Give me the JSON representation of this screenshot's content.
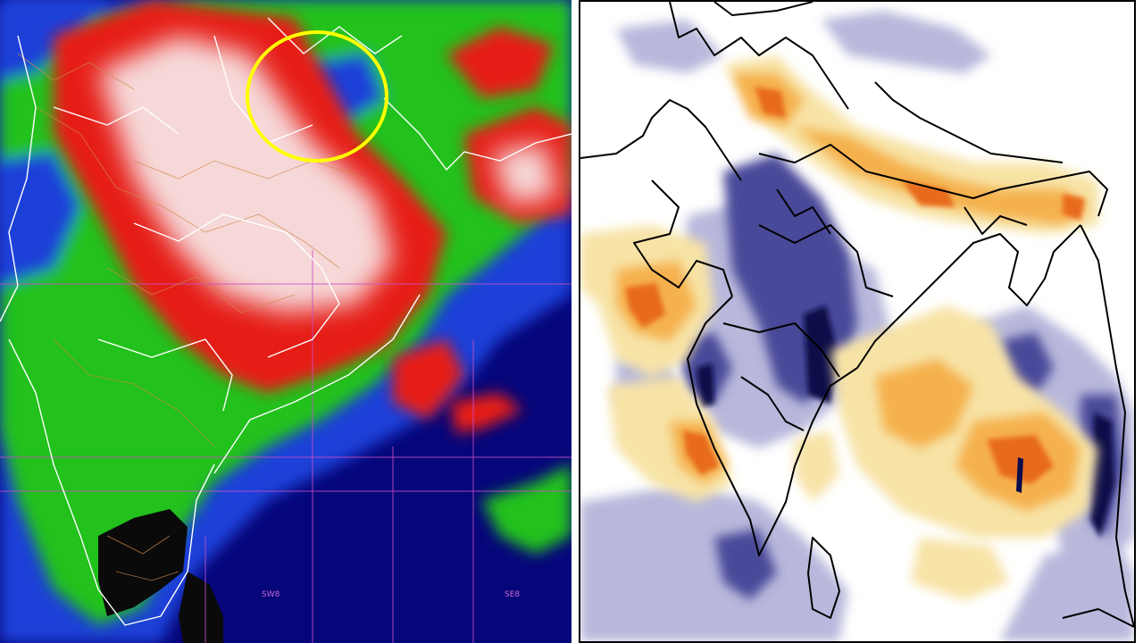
{
  "satellite_panel": {
    "grid_labels": [
      "SW8",
      "SE8"
    ],
    "colors": {
      "ocean": "#06067a",
      "low_cloud": "#1a3fd8",
      "mid_cloud": "#22c11e",
      "high_cloud": "#e61b14",
      "deep_cloud": "#f6d8d8",
      "land_dark": "#0a0a0a",
      "grid": "#c84dc8",
      "boundary": "#ffffff",
      "district_lines": "#d08a4a",
      "highlight_circle": "#ffff00"
    },
    "highlight_circle": "yellow-circle-north-india"
  },
  "anomaly_panel": {
    "colors": {
      "negative_dark": "#0c0c4a",
      "negative_mid": "#4a4a9a",
      "negative_light": "#b8b8dc",
      "positive_light": "#f7e3a6",
      "positive_mid": "#f5b14e",
      "positive_strong": "#e86a1a",
      "neutral": "#ffffff",
      "boundary": "#000000"
    }
  }
}
